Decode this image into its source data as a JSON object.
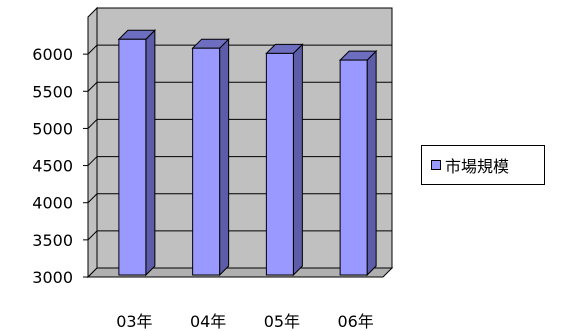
{
  "chart_data": {
    "type": "bar",
    "categories": [
      "03年",
      "04年",
      "05年",
      "06年"
    ],
    "series": [
      {
        "name": "市場規模",
        "values": [
          6200,
          6080,
          6010,
          5920
        ]
      }
    ],
    "yticks": [
      "3000",
      "3500",
      "4000",
      "4500",
      "5000",
      "5500",
      "6000"
    ],
    "ylim": [
      3000,
      6500
    ],
    "grid": true,
    "legend_position": "right",
    "colors": {
      "bar_front": "#9999FF",
      "bar_side": "#5C5CA8",
      "bar_top": "#6E6EC0",
      "wall": "#C0C0C0",
      "floor": "#B0B0B0",
      "outline": "#000000"
    }
  },
  "legend": {
    "label": "市場規模"
  }
}
